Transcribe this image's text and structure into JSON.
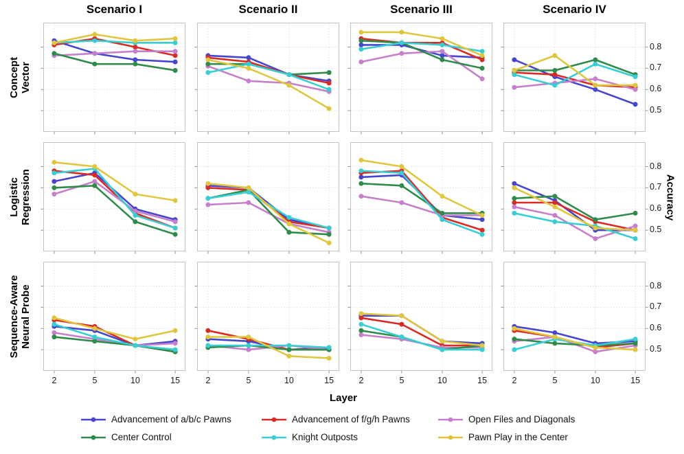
{
  "header": {
    "col_titles": [
      "Scenario I",
      "Scenario II",
      "Scenario III",
      "Scenario IV"
    ]
  },
  "row_labels": [
    {
      "line1": "Concept",
      "line2": "Vector"
    },
    {
      "line1": "Logistic",
      "line2": "Regression"
    },
    {
      "line1": "Sequence-Aware",
      "line2": "Neural Probe"
    }
  ],
  "axes": {
    "x_label": "Layer",
    "y_label": "Accuracy",
    "x_tick_labels": [
      "2",
      "5",
      "10",
      "15"
    ],
    "y_tick_labels": [
      "0.8",
      "0.7",
      "0.6",
      "0.5"
    ]
  },
  "legend": {
    "items": [
      {
        "key": "abc_pawns",
        "label": "Advancement of a/b/c Pawns",
        "color": "#4645cf"
      },
      {
        "key": "fgh_pawns",
        "label": "Advancement of f/g/h Pawns",
        "color": "#d92b24"
      },
      {
        "key": "open_files",
        "label": "Open Files and Diagonals",
        "color": "#c67fca"
      },
      {
        "key": "center_control",
        "label": "Center Control",
        "color": "#2e8b4a"
      },
      {
        "key": "knight_outposts",
        "label": "Knight Outposts",
        "color": "#38cdd2"
      },
      {
        "key": "pawn_play",
        "label": "Pawn Play in the Center",
        "color": "#e0c63f"
      }
    ]
  },
  "chart_data": {
    "type": "line",
    "x": [
      2,
      5,
      10,
      15
    ],
    "xlabel": "Layer",
    "ylabel": "Accuracy",
    "ylim": [
      0.4,
      0.915
    ],
    "y_ticks": [
      0.8,
      0.7,
      0.6,
      0.5
    ],
    "grid_on": true,
    "legend_position": "bottom",
    "columns": [
      "Scenario I",
      "Scenario II",
      "Scenario III",
      "Scenario IV"
    ],
    "rows": [
      "Concept Vector",
      "Logistic Regression",
      "Sequence-Aware Neural Probe"
    ],
    "grid": [
      {
        "row": "Concept Vector",
        "cols": [
          {
            "col": "Scenario I",
            "series": {
              "abc_pawns": [
                0.83,
                0.77,
                0.74,
                0.73
              ],
              "fgh_pawns": [
                0.81,
                0.84,
                0.8,
                0.76
              ],
              "open_files": [
                0.76,
                0.77,
                0.78,
                0.78
              ],
              "center_control": [
                0.77,
                0.72,
                0.72,
                0.69
              ],
              "knight_outposts": [
                0.82,
                0.83,
                0.82,
                0.82
              ],
              "pawn_play": [
                0.82,
                0.86,
                0.83,
                0.84
              ]
            }
          },
          {
            "col": "Scenario II",
            "series": {
              "abc_pawns": [
                0.76,
                0.75,
                0.67,
                0.64
              ],
              "fgh_pawns": [
                0.75,
                0.73,
                0.67,
                0.63
              ],
              "open_files": [
                0.71,
                0.64,
                0.63,
                0.59
              ],
              "center_control": [
                0.72,
                0.72,
                0.67,
                0.68
              ],
              "knight_outposts": [
                0.68,
                0.72,
                0.67,
                0.6
              ],
              "pawn_play": [
                0.74,
                0.7,
                0.62,
                0.51
              ]
            }
          },
          {
            "col": "Scenario III",
            "series": {
              "abc_pawns": [
                0.81,
                0.81,
                0.76,
                0.75
              ],
              "fgh_pawns": [
                0.84,
                0.82,
                0.82,
                0.74
              ],
              "open_files": [
                0.73,
                0.77,
                0.78,
                0.65
              ],
              "center_control": [
                0.83,
                0.82,
                0.74,
                0.7
              ],
              "knight_outposts": [
                0.79,
                0.82,
                0.81,
                0.78
              ],
              "pawn_play": [
                0.87,
                0.87,
                0.84,
                0.76
              ]
            }
          },
          {
            "col": "Scenario IV",
            "series": {
              "abc_pawns": [
                0.74,
                0.66,
                0.6,
                0.53
              ],
              "fgh_pawns": [
                0.68,
                0.67,
                0.62,
                0.61
              ],
              "open_files": [
                0.61,
                0.63,
                0.65,
                0.6
              ],
              "center_control": [
                0.69,
                0.69,
                0.74,
                0.67
              ],
              "knight_outposts": [
                0.67,
                0.62,
                0.72,
                0.66
              ],
              "pawn_play": [
                0.69,
                0.76,
                0.62,
                0.62
              ]
            }
          }
        ]
      },
      {
        "row": "Logistic Regression",
        "cols": [
          {
            "col": "Scenario I",
            "series": {
              "abc_pawns": [
                0.73,
                0.77,
                0.6,
                0.55
              ],
              "fgh_pawns": [
                0.78,
                0.76,
                0.58,
                0.51
              ],
              "open_files": [
                0.67,
                0.73,
                0.59,
                0.54
              ],
              "center_control": [
                0.7,
                0.71,
                0.54,
                0.48
              ],
              "knight_outposts": [
                0.77,
                0.79,
                0.57,
                0.51
              ],
              "pawn_play": [
                0.82,
                0.8,
                0.67,
                0.64
              ]
            }
          },
          {
            "col": "Scenario II",
            "series": {
              "abc_pawns": [
                0.71,
                0.7,
                0.55,
                0.51
              ],
              "fgh_pawns": [
                0.7,
                0.69,
                0.54,
                0.51
              ],
              "open_files": [
                0.62,
                0.63,
                0.53,
                0.49
              ],
              "center_control": [
                0.65,
                0.69,
                0.49,
                0.48
              ],
              "knight_outposts": [
                0.65,
                0.68,
                0.56,
                0.51
              ],
              "pawn_play": [
                0.72,
                0.7,
                0.53,
                0.44
              ]
            }
          },
          {
            "col": "Scenario III",
            "series": {
              "abc_pawns": [
                0.75,
                0.76,
                0.57,
                0.55
              ],
              "fgh_pawns": [
                0.77,
                0.78,
                0.56,
                0.5
              ],
              "open_files": [
                0.66,
                0.63,
                0.57,
                0.57
              ],
              "center_control": [
                0.72,
                0.71,
                0.58,
                0.58
              ],
              "knight_outposts": [
                0.78,
                0.77,
                0.55,
                0.48
              ],
              "pawn_play": [
                0.83,
                0.8,
                0.66,
                0.57
              ]
            }
          },
          {
            "col": "Scenario IV",
            "series": {
              "abc_pawns": [
                0.72,
                0.64,
                0.5,
                0.5
              ],
              "fgh_pawns": [
                0.63,
                0.63,
                0.54,
                0.5
              ],
              "open_files": [
                0.61,
                0.57,
                0.46,
                0.52
              ],
              "center_control": [
                0.65,
                0.66,
                0.55,
                0.58
              ],
              "knight_outposts": [
                0.58,
                0.54,
                0.52,
                0.46
              ],
              "pawn_play": [
                0.7,
                0.61,
                0.51,
                0.5
              ]
            }
          }
        ]
      },
      {
        "row": "Sequence-Aware Neural Probe",
        "cols": [
          {
            "col": "Scenario I",
            "series": {
              "abc_pawns": [
                0.61,
                0.59,
                0.52,
                0.54
              ],
              "fgh_pawns": [
                0.64,
                0.61,
                0.52,
                0.49
              ],
              "open_files": [
                0.58,
                0.55,
                0.52,
                0.53
              ],
              "center_control": [
                0.56,
                0.54,
                0.52,
                0.49
              ],
              "knight_outposts": [
                0.62,
                0.56,
                0.52,
                0.5
              ],
              "pawn_play": [
                0.65,
                0.6,
                0.55,
                0.59
              ]
            }
          },
          {
            "col": "Scenario II",
            "series": {
              "abc_pawns": [
                0.55,
                0.54,
                0.5,
                0.51
              ],
              "fgh_pawns": [
                0.59,
                0.55,
                0.5,
                0.5
              ],
              "open_files": [
                0.52,
                0.5,
                0.52,
                0.5
              ],
              "center_control": [
                0.51,
                0.52,
                0.5,
                0.5
              ],
              "knight_outposts": [
                0.52,
                0.52,
                0.52,
                0.51
              ],
              "pawn_play": [
                0.56,
                0.56,
                0.47,
                0.46
              ]
            }
          },
          {
            "col": "Scenario III",
            "series": {
              "abc_pawns": [
                0.66,
                0.66,
                0.54,
                0.53
              ],
              "fgh_pawns": [
                0.65,
                0.62,
                0.52,
                0.52
              ],
              "open_files": [
                0.57,
                0.55,
                0.51,
                0.51
              ],
              "center_control": [
                0.59,
                0.56,
                0.5,
                0.52
              ],
              "knight_outposts": [
                0.62,
                0.56,
                0.5,
                0.5
              ],
              "pawn_play": [
                0.67,
                0.66,
                0.54,
                0.52
              ]
            }
          },
          {
            "col": "Scenario IV",
            "series": {
              "abc_pawns": [
                0.61,
                0.58,
                0.53,
                0.54
              ],
              "fgh_pawns": [
                0.59,
                0.56,
                0.51,
                0.53
              ],
              "open_files": [
                0.54,
                0.56,
                0.49,
                0.52
              ],
              "center_control": [
                0.55,
                0.53,
                0.52,
                0.53
              ],
              "knight_outposts": [
                0.5,
                0.55,
                0.52,
                0.55
              ],
              "pawn_play": [
                0.6,
                0.56,
                0.51,
                0.5
              ]
            }
          }
        ]
      }
    ]
  }
}
